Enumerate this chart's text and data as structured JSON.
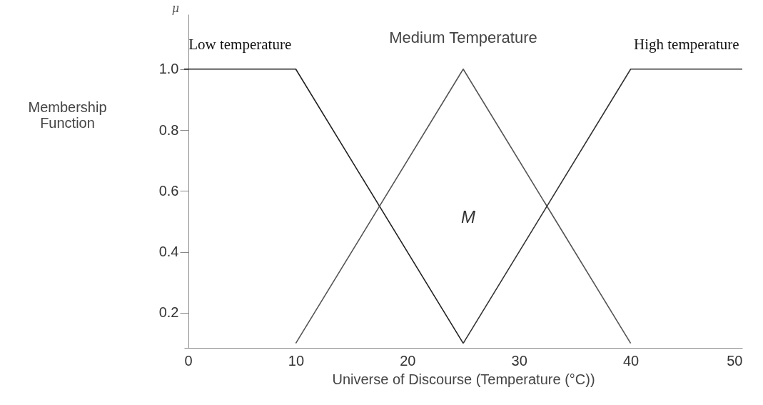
{
  "chart_data": {
    "type": "line",
    "xlabel": "Universe of Discourse (Temperature (°C))",
    "ylabel": "Membership Function",
    "xlim": [
      0,
      50
    ],
    "xticks": [
      0,
      10,
      20,
      30,
      40,
      50
    ],
    "ylim": [
      0.085,
      1.18
    ],
    "yticks": [
      0.2,
      0.4,
      0.6,
      0.8,
      {
        "value": 1,
        "label": "1.0"
      }
    ],
    "series": [
      {
        "name": "Low temperature",
        "color": "#222222",
        "x": [
          0,
          10,
          25
        ],
        "values": [
          1.0,
          1.0,
          0.1
        ]
      },
      {
        "name": "Medium Temperature",
        "color": "#555555",
        "x": [
          10,
          25,
          40
        ],
        "values": [
          0.1,
          1.0,
          0.1
        ]
      },
      {
        "name": "High temperature",
        "color": "#333333",
        "x": [
          25,
          40,
          50
        ],
        "values": [
          0.1,
          1.0,
          1.0
        ]
      }
    ],
    "annotations": [
      "μ",
      "M"
    ],
    "grid": false,
    "marker": "none",
    "line_style": "solid"
  }
}
